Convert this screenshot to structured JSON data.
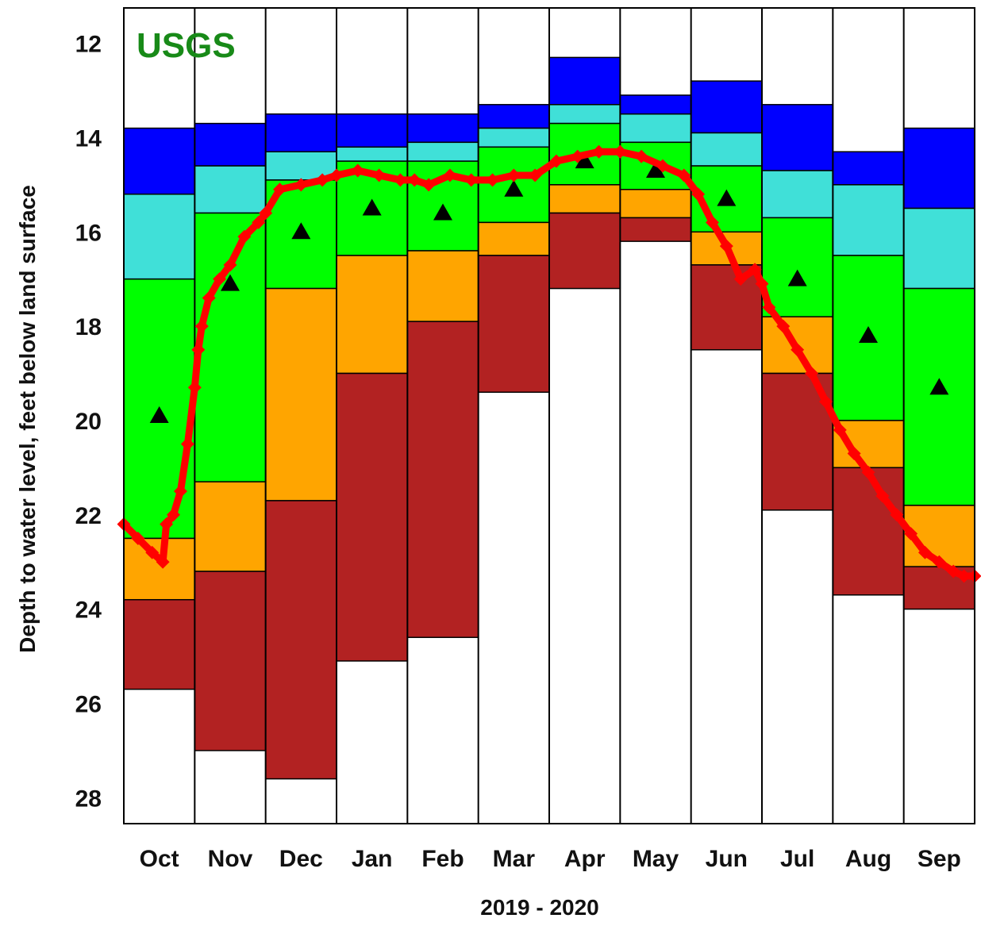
{
  "chart_data": {
    "type": "bar",
    "logo_text": "USGS",
    "ylabel": "Depth to water level, feet below land surface",
    "xlabel": "2019 - 2020",
    "ylim": [
      28.55,
      11.25
    ],
    "y_inverted": true,
    "y_ticks": [
      12,
      14,
      16,
      18,
      20,
      22,
      24,
      26,
      28
    ],
    "categories": [
      "Oct",
      "Nov",
      "Dec",
      "Jan",
      "Feb",
      "Mar",
      "Apr",
      "May",
      "Jun",
      "Jul",
      "Aug",
      "Sep"
    ],
    "band_colors": [
      "#0000ff",
      "#40e0d8",
      "#00ff00",
      "#ffa500",
      "#b22222"
    ],
    "band_boundaries": [
      [
        13.8,
        15.2,
        17.0,
        22.5,
        23.8,
        25.7
      ],
      [
        13.7,
        14.6,
        15.6,
        21.3,
        23.2,
        27.0
      ],
      [
        13.5,
        14.3,
        14.9,
        17.2,
        21.7,
        27.6
      ],
      [
        13.5,
        14.2,
        14.5,
        16.5,
        19.0,
        25.1
      ],
      [
        13.5,
        14.1,
        14.5,
        16.4,
        17.9,
        24.6
      ],
      [
        13.3,
        13.8,
        14.2,
        15.8,
        16.5,
        19.4
      ],
      [
        12.3,
        13.3,
        13.7,
        15.0,
        15.6,
        17.2
      ],
      [
        13.1,
        13.5,
        14.1,
        15.1,
        15.7,
        16.2
      ],
      [
        12.8,
        13.9,
        14.6,
        16.0,
        16.7,
        18.5
      ],
      [
        13.3,
        14.7,
        15.7,
        17.8,
        19.0,
        21.9
      ],
      [
        14.3,
        15.0,
        16.5,
        20.0,
        21.0,
        23.7
      ],
      [
        13.8,
        15.5,
        17.2,
        21.8,
        23.1,
        24.0
      ]
    ],
    "median_markers": [
      19.9,
      17.1,
      16.0,
      15.5,
      15.6,
      15.1,
      14.5,
      14.7,
      15.3,
      17.0,
      18.2,
      19.3
    ],
    "marker_color": "#000000",
    "series": [
      {
        "color": "#ff0000",
        "x": [
          0.0,
          0.2,
          0.4,
          0.55,
          0.6,
          0.7,
          0.8,
          0.9,
          1.0,
          1.05,
          1.1,
          1.2,
          1.35,
          1.5,
          1.7,
          1.9,
          2.0,
          2.2,
          2.5,
          2.8,
          3.0,
          3.3,
          3.6,
          3.9,
          4.1,
          4.3,
          4.6,
          4.9,
          5.2,
          5.5,
          5.8,
          6.1,
          6.4,
          6.7,
          7.0,
          7.3,
          7.6,
          7.9,
          8.1,
          8.3,
          8.5,
          8.7,
          8.9,
          9.0,
          9.1,
          9.3,
          9.5,
          9.7,
          9.9,
          10.1,
          10.3,
          10.5,
          10.7,
          10.9,
          11.1,
          11.3,
          11.5,
          11.7,
          11.85,
          12.0
        ],
        "y": [
          22.2,
          22.5,
          22.8,
          23.0,
          22.2,
          22.0,
          21.5,
          20.5,
          19.3,
          18.5,
          18.0,
          17.4,
          17.0,
          16.7,
          16.1,
          15.8,
          15.6,
          15.1,
          15.0,
          14.9,
          14.8,
          14.7,
          14.8,
          14.9,
          14.9,
          15.0,
          14.8,
          14.9,
          14.9,
          14.8,
          14.8,
          14.5,
          14.4,
          14.3,
          14.3,
          14.4,
          14.6,
          14.8,
          15.2,
          15.8,
          16.3,
          17.0,
          16.8,
          17.1,
          17.6,
          18.0,
          18.5,
          19.0,
          19.6,
          20.2,
          20.7,
          21.1,
          21.6,
          22.0,
          22.4,
          22.8,
          23.0,
          23.2,
          23.3,
          23.3
        ]
      }
    ]
  }
}
